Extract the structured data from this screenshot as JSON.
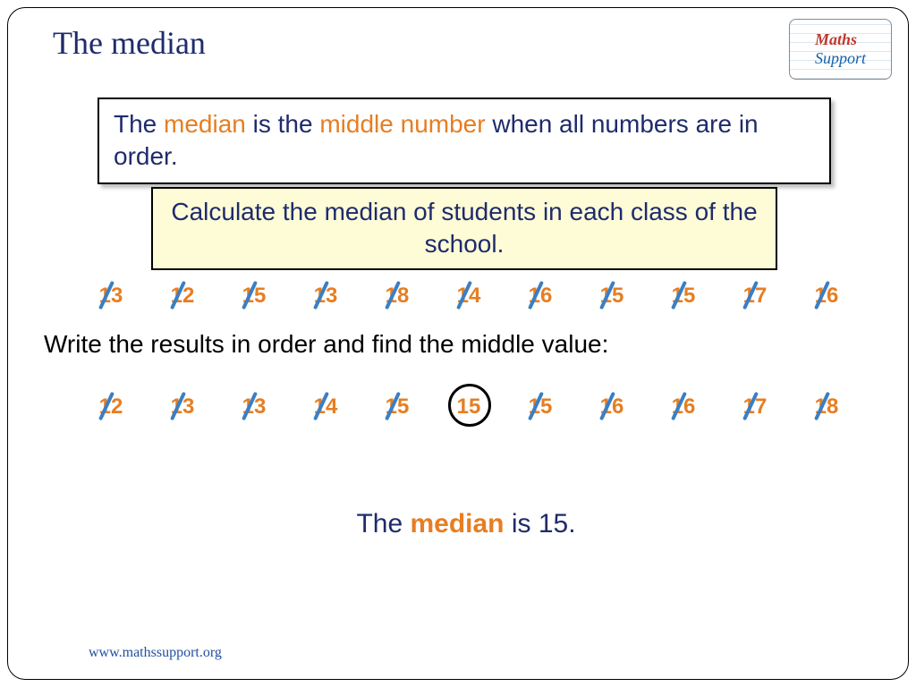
{
  "title": "The median",
  "logo": {
    "line1": "Maths",
    "line2": "Support"
  },
  "definition": {
    "pre": "The ",
    "term1": "median",
    "mid": " is the ",
    "term2": "middle number",
    "post": " when all numbers are in order."
  },
  "task": "Calculate the median of students in each class of the school.",
  "numbers_unordered": [
    "13",
    "12",
    "15",
    "13",
    "18",
    "14",
    "16",
    "15",
    "15",
    "17",
    "16"
  ],
  "instruction": "Write the results in order and find the middle value:",
  "numbers_ordered": [
    "12",
    "13",
    "13",
    "14",
    "15",
    "15",
    "15",
    "16",
    "16",
    "17",
    "18"
  ],
  "median_index": 5,
  "conclusion": {
    "pre": "The ",
    "term": "median",
    "post": " is 15."
  },
  "footer": "www.mathssupport.org",
  "colors": {
    "title": "#1f2b6c",
    "highlight": "#e67e22",
    "slash": "#3a7fc4",
    "task_bg": "#fdfcd6",
    "number": "#e67e22"
  },
  "fonts": {
    "title": "Comic Sans MS",
    "body": "Arial",
    "size_title": 36,
    "size_body": 28,
    "size_number": 24
  }
}
